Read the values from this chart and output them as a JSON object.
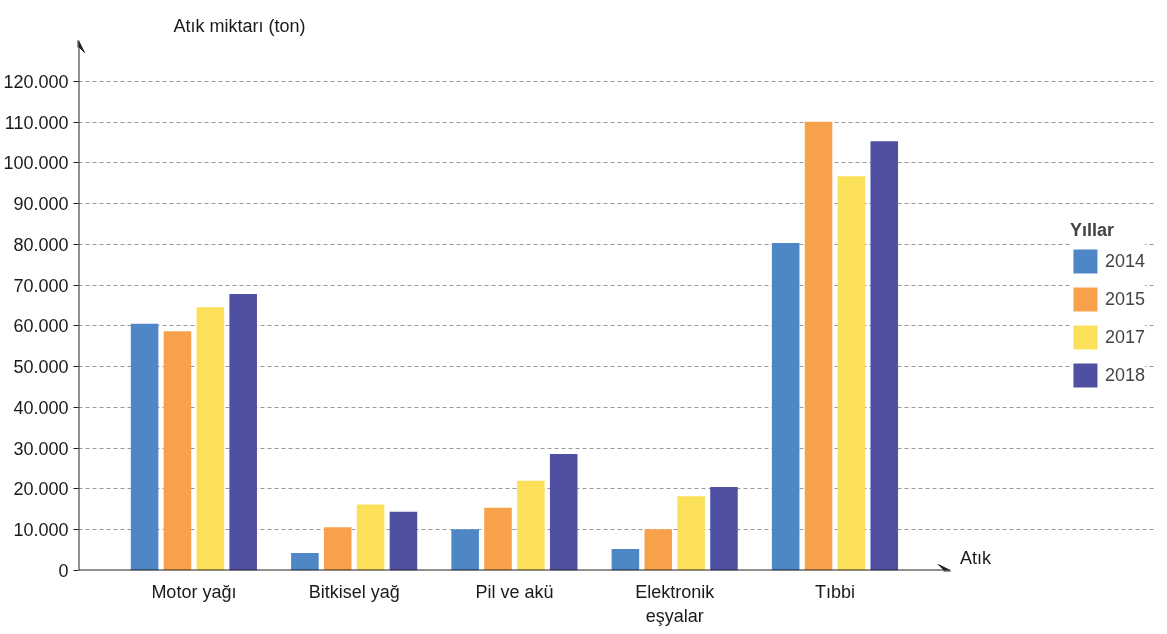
{
  "chart_data": {
    "type": "bar",
    "xlabel": "Atık",
    "ylabel": "Atık miktarı (ton)",
    "legend_title": "Yıllar",
    "categories": [
      "Motor yağı",
      "Bitkisel yağ",
      "Pil ve akü",
      "Elektronik eşyalar",
      "Tıbbi"
    ],
    "series": [
      {
        "name": "2014",
        "color": "#4e86c6",
        "values": [
          60500,
          4300,
          10100,
          5300,
          80300
        ]
      },
      {
        "name": "2015",
        "color": "#f7a24a",
        "values": [
          58700,
          10600,
          15400,
          10100,
          110100
        ]
      },
      {
        "name": "2017",
        "color": "#fde05a",
        "values": [
          64600,
          16200,
          22000,
          18200,
          96700
        ]
      },
      {
        "name": "2018",
        "color": "#5050a2",
        "values": [
          67800,
          14400,
          28600,
          20500,
          105300
        ]
      }
    ],
    "ylim": [
      0,
      130000
    ],
    "yticks": [
      {
        "value": 0,
        "label": "0"
      },
      {
        "value": 10000,
        "label": "10.000"
      },
      {
        "value": 20000,
        "label": "20.000"
      },
      {
        "value": 30000,
        "label": "30.000"
      },
      {
        "value": 40000,
        "label": "40.000"
      },
      {
        "value": 50000,
        "label": "50.000"
      },
      {
        "value": 60000,
        "label": "60.000"
      },
      {
        "value": 70000,
        "label": "70.000"
      },
      {
        "value": 80000,
        "label": "80.000"
      },
      {
        "value": 90000,
        "label": "90.000"
      },
      {
        "value": 100000,
        "label": "100.000"
      },
      {
        "value": 110000,
        "label": "110.000"
      },
      {
        "value": 120000,
        "label": "120.000"
      }
    ],
    "grid": "y",
    "legend": "right"
  }
}
